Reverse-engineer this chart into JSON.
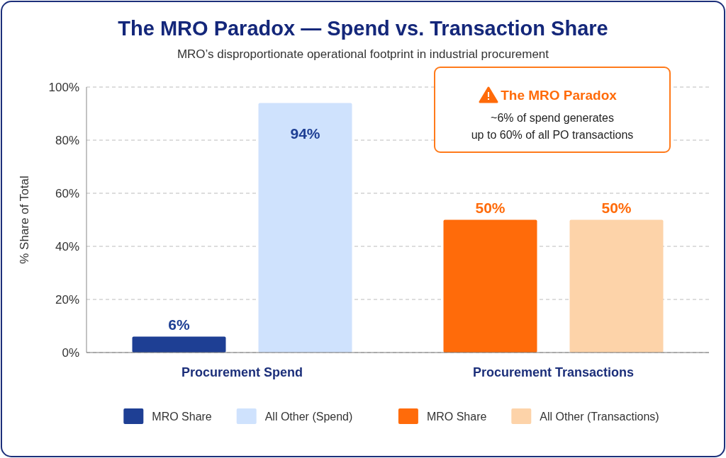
{
  "chart_data": {
    "type": "bar",
    "title": "The MRO Paradox — Spend vs. Transaction Share",
    "subtitle": "MRO’s disproportionate operational footprint in industrial procurement",
    "ylabel": "% Share of Total",
    "categories": [
      "Procurement Spend",
      "Procurement Transactions"
    ],
    "series": [
      {
        "name": "MRO Share",
        "color": "#1e3f94",
        "values": [
          6,
          null
        ],
        "value_labels": [
          "6%",
          null
        ]
      },
      {
        "name": "All Other (Spend)",
        "color": "#cfe2fd",
        "values": [
          94,
          null
        ],
        "value_labels": [
          "94%",
          null
        ]
      },
      {
        "name": "MRO Share",
        "color": "#ff6b0a",
        "values": [
          null,
          50
        ],
        "value_labels": [
          null,
          "50%"
        ]
      },
      {
        "name": "All Other (Transactions)",
        "color": "#fdd3a9",
        "values": [
          null,
          50
        ],
        "value_labels": [
          null,
          "50%"
        ]
      }
    ],
    "ylim": [
      0,
      100
    ],
    "yticks": [
      {
        "value": 0,
        "label": "0%"
      },
      {
        "value": 20,
        "label": "20%"
      },
      {
        "value": 40,
        "label": "40%"
      },
      {
        "value": 60,
        "label": "60%"
      },
      {
        "value": 80,
        "label": "80%"
      },
      {
        "value": 100,
        "label": "100%"
      }
    ],
    "grid": "y",
    "legend": "bottom",
    "annotations": [
      "The MRO Paradox",
      "~6% of spend generates up to 60% of all PO transactions"
    ]
  }
}
